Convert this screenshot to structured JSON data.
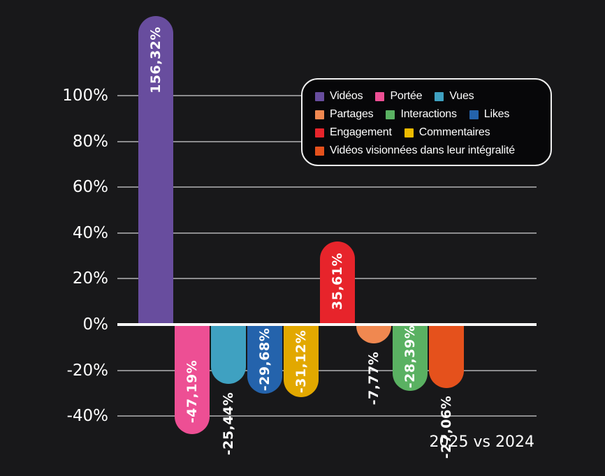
{
  "chart_data": {
    "type": "bar",
    "caption": "2025 vs 2024",
    "background": "#18181a",
    "gridline_color": "#8c8c8e",
    "baseline_color": "#ffffff",
    "text_color": "#ffffff",
    "grid": "on",
    "legend_position": "top-right",
    "y_axis": {
      "unit": "%",
      "range_shown": [
        -40,
        100
      ],
      "ticks": [
        {
          "label": "100%",
          "value": 100
        },
        {
          "label": "80%",
          "value": 80
        },
        {
          "label": "60%",
          "value": 60
        },
        {
          "label": "40%",
          "value": 40
        },
        {
          "label": "20%",
          "value": 20
        },
        {
          "label": "0%",
          "value": 0
        },
        {
          "label": "-20%",
          "value": -20
        },
        {
          "label": "-40%",
          "value": -40
        }
      ]
    },
    "bars": [
      {
        "name": "Vidéos",
        "value": 156.32,
        "label": "156,32%",
        "color": "#684d9e"
      },
      {
        "name": "Portée",
        "value": -47.19,
        "label": "-47,19%",
        "color": "#ed4f94"
      },
      {
        "name": "Vues",
        "value": -25.44,
        "label": "-25,44%",
        "color": "#3fa1c1"
      },
      {
        "name": "Likes",
        "value": -29.68,
        "label": "-29,68%",
        "color": "#2463ac"
      },
      {
        "name": "Commentaires",
        "value": -31.12,
        "label": "-31,12%",
        "color": "#e2a800"
      },
      {
        "name": "Engagement",
        "value": 35.61,
        "label": "35,61%",
        "color": "#e7242b"
      },
      {
        "name": "Partages",
        "value": -7.77,
        "label": "-7,77%",
        "color": "#f08850"
      },
      {
        "name": "Interactions",
        "value": -28.39,
        "label": "-28,39%",
        "color": "#5ab162"
      },
      {
        "name": "Vidéos visionnées dans leur intégralité",
        "value": -27.06,
        "label": "-27,06%",
        "color": "#e5511c"
      }
    ],
    "legend": {
      "rows": [
        [
          {
            "label": "Vidéos",
            "color": "#684d9e"
          },
          {
            "label": "Portée",
            "color": "#ed4f94"
          },
          {
            "label": "Vues",
            "color": "#3fa1c1"
          }
        ],
        [
          {
            "label": "Partages",
            "color": "#f08850"
          },
          {
            "label": "Interactions",
            "color": "#5ab162"
          },
          {
            "label": "Likes",
            "color": "#2463ac"
          }
        ],
        [
          {
            "label": "Engagement",
            "color": "#e7242b"
          },
          {
            "label": "Commentaires",
            "color": "#eebb00"
          }
        ],
        [
          {
            "label": "Vidéos visionnées dans leur intégralité",
            "color": "#e5511c"
          }
        ]
      ]
    }
  }
}
